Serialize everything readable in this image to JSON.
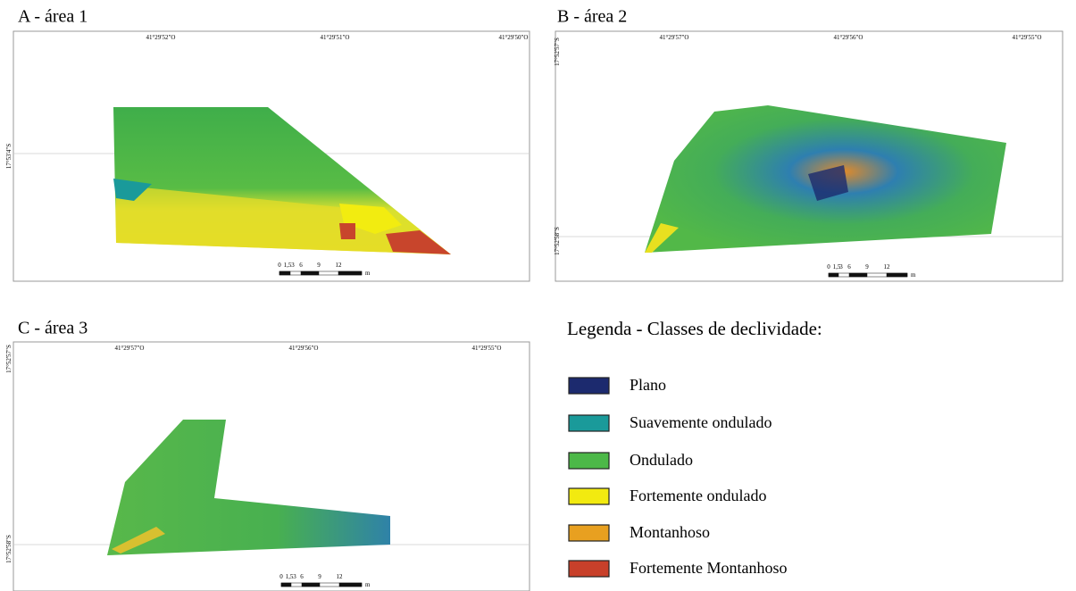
{
  "panels": [
    {
      "title": "A - área 1",
      "x_labels": [
        "41°29'52\"O",
        "41°29'51\"O",
        "41°29'50\"O"
      ],
      "y_labels": [
        "17°53'4\"S"
      ],
      "scale_labels": [
        "0",
        "1,5",
        "3",
        "6",
        "9",
        "12"
      ],
      "scale_unit": "m"
    },
    {
      "title": "B - área 2",
      "x_labels": [
        "41°29'57\"O",
        "41°29'56\"O",
        "41°29'55\"O"
      ],
      "y_labels": [
        "17°52'57\"S",
        "17°52'58\"S"
      ],
      "scale_labels": [
        "0",
        "1,5",
        "3",
        "6",
        "9",
        "12"
      ],
      "scale_unit": "m"
    },
    {
      "title": "C - área 3",
      "x_labels": [
        "41°29'57\"O",
        "41°29'56\"O",
        "41°29'55\"O"
      ],
      "y_labels": [
        "17°52'57\"S",
        "17°52'58\"S"
      ],
      "scale_labels": [
        "0",
        "1,5",
        "3",
        "6",
        "9",
        "12"
      ],
      "scale_unit": "m"
    }
  ],
  "legend": {
    "title": "Legenda - Classes de declividade:",
    "items": [
      {
        "label": "Plano",
        "color": "#1c2a6e"
      },
      {
        "label": "Suavemente ondulado",
        "color": "#1a9a9a"
      },
      {
        "label": "Ondulado",
        "color": "#4cb848"
      },
      {
        "label": "Fortemente ondulado",
        "color": "#f2ea10"
      },
      {
        "label": "Montanhoso",
        "color": "#e8a020"
      },
      {
        "label": "Fortemente Montanhoso",
        "color": "#c8402a"
      }
    ]
  }
}
